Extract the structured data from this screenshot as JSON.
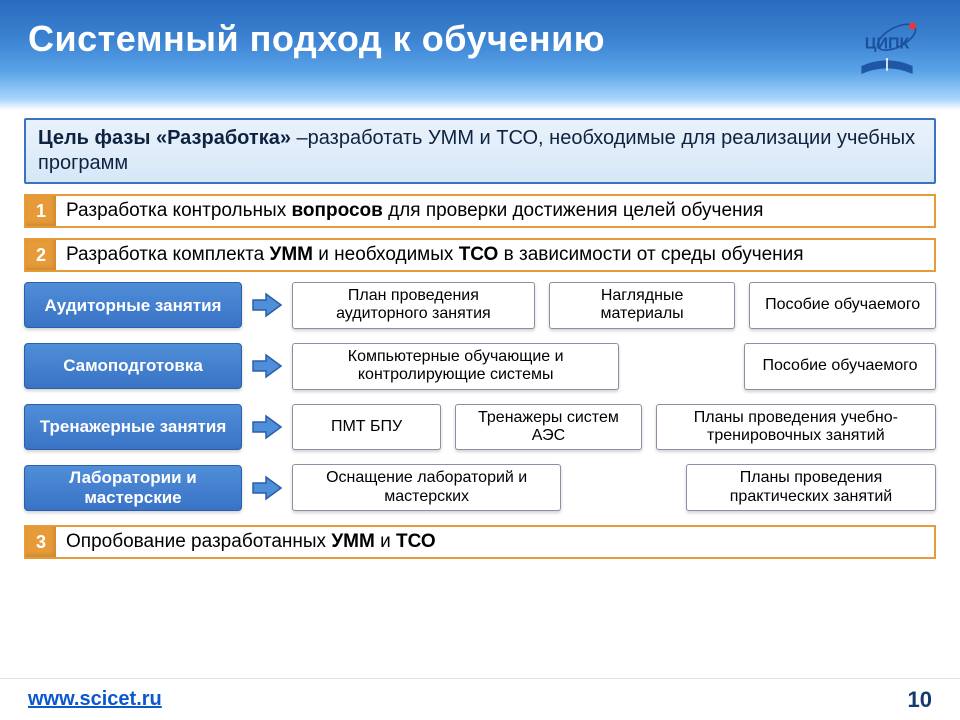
{
  "colors": {
    "header_gradient_from": "#2a6bbd",
    "header_gradient_to": "#ffffff",
    "title_color": "#ffffff",
    "goal_border": "#3a73c6",
    "goal_bg_from": "#eaf2fb",
    "goal_bg_to": "#d6e7f7",
    "num_border": "#e69b38",
    "num_badge_bg": "#e69b38",
    "cat_bg_from": "#4f8ed8",
    "cat_bg_to": "#3a73c6",
    "arrow_fill": "#4f8ed8",
    "arrow_stroke": "#2b5fa8",
    "card_border": "#8a8fa3",
    "url_color": "#0b57d0",
    "pagenum_color": "#153a6b",
    "logo_orbit": "#1a4f9e",
    "logo_book": "#1a4f9e",
    "logo_dot": "#e23b3b"
  },
  "title": "Системный подход к обучению",
  "logo_text": "ЦИПК",
  "goal_lead": "Цель фазы «Разработка»",
  "goal_rest": " –разработать УММ и ТСО, необходимые для реализации учебных программ",
  "steps": {
    "s1": {
      "n": "1",
      "pre": "Разработка контрольных ",
      "bold": "вопросов",
      "post": " для проверки достижения целей обучения"
    },
    "s2": {
      "n": "2",
      "pre": "Разработка комплекта ",
      "bold": "УММ",
      "mid": " и необходимых ",
      "bold2": "ТСО",
      "post": " в зависимости от среды обучения"
    },
    "s3": {
      "n": "3",
      "pre": "Опробование разработанных ",
      "bold": "УММ",
      "mid": " и ",
      "bold2": "ТСО",
      "post": ""
    }
  },
  "rows": [
    {
      "cat": "Аудиторные занятия",
      "items": [
        {
          "text": "План проведения аудиторного занятия",
          "flex": 1.2
        },
        {
          "text": "Наглядные материалы",
          "flex": 0.9
        },
        {
          "text": "Пособие обучаемого",
          "flex": 0.9
        }
      ]
    },
    {
      "cat": "Самоподготовка",
      "items": [
        {
          "text": "Компьютерные обучающие и контролирующие системы",
          "flex": 1.6
        },
        {
          "spacer": true,
          "flex": 0.5
        },
        {
          "text": "Пособие обучаемого",
          "flex": 0.9
        }
      ]
    },
    {
      "cat": "Тренажерные занятия",
      "items": [
        {
          "text": "ПМТ БПУ",
          "flex": 0.7
        },
        {
          "text": "Тренажеры систем АЭС",
          "flex": 0.9
        },
        {
          "text": "Планы проведения учебно-тренировочных занятий",
          "flex": 1.4
        }
      ]
    },
    {
      "cat": "Лаборатории и мастерские",
      "items": [
        {
          "text": "Оснащение лабораторий и мастерских",
          "flex": 1.3
        },
        {
          "spacer": true,
          "flex": 0.5
        },
        {
          "text": "Планы проведения практических занятий",
          "flex": 1.2
        }
      ]
    }
  ],
  "footer": {
    "url": "www.scicet.ru",
    "page": "10"
  }
}
